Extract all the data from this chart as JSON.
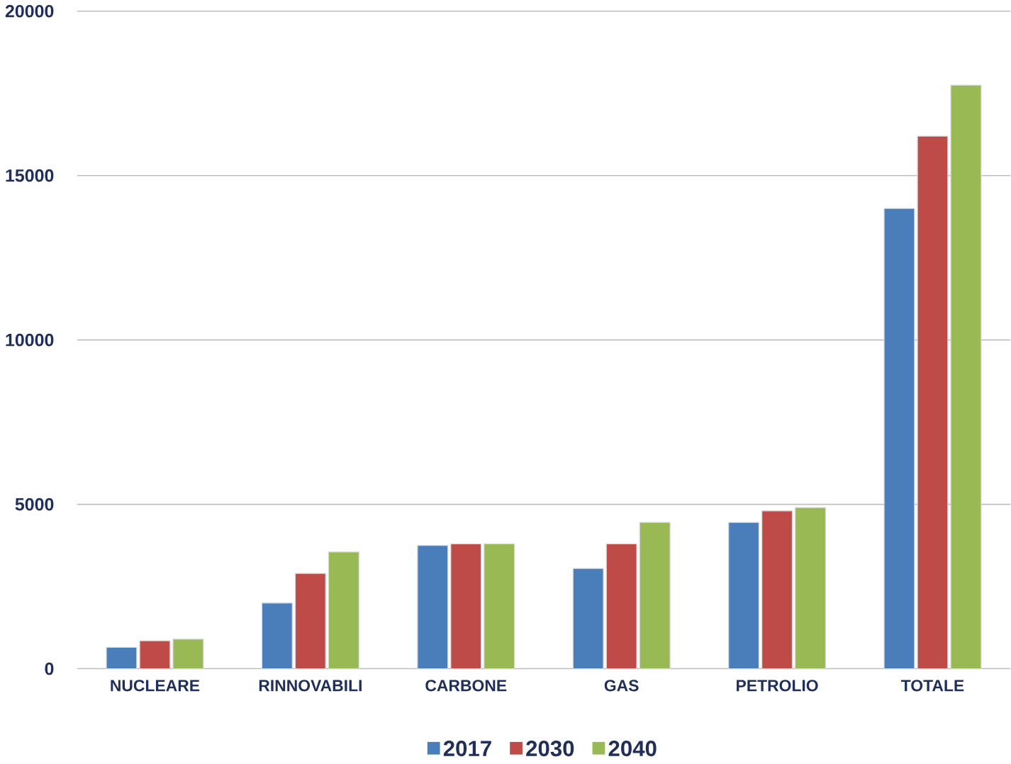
{
  "chart_data": {
    "type": "bar",
    "categories": [
      "NUCLEARE",
      "RINNOVABILI",
      "CARBONE",
      "GAS",
      "PETROLIO",
      "TOTALE"
    ],
    "series": [
      {
        "name": "2017",
        "color": "#4a7ebb",
        "values": [
          650,
          2000,
          3750,
          3050,
          4450,
          14000
        ]
      },
      {
        "name": "2030",
        "color": "#be4b48",
        "values": [
          850,
          2900,
          3800,
          3800,
          4800,
          16200
        ]
      },
      {
        "name": "2040",
        "color": "#98b954",
        "values": [
          900,
          3550,
          3800,
          4450,
          4900,
          17750
        ]
      }
    ],
    "ylim": [
      0,
      20000
    ],
    "yticks": [
      0,
      5000,
      10000,
      15000,
      20000
    ],
    "grid": "y",
    "legend": "bottom"
  }
}
